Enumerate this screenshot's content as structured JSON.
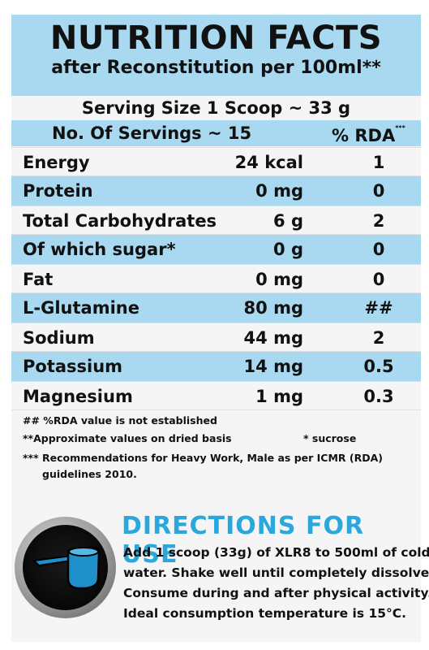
{
  "header": {
    "title": "NUTRITION FACTS",
    "subtitle": "after Reconstitution per 100ml**"
  },
  "serving_size": "Serving Size 1 Scoop ~ 33 g",
  "servings": {
    "count_label": "No. Of Servings ~ 15",
    "rda_label": "% RDA",
    "rda_marker": "***"
  },
  "nutrients": [
    {
      "name": "Energy",
      "value": "24 kcal",
      "rda": "1"
    },
    {
      "name": "Protein",
      "value": "0 mg",
      "rda": "0"
    },
    {
      "name": "Total Carbohydrates",
      "value": "6 g",
      "rda": "2"
    },
    {
      "name": "Of which sugar*",
      "value": "0 g",
      "rda": "0"
    },
    {
      "name": "Fat",
      "value": "0 mg",
      "rda": "0"
    },
    {
      "name": "L-Glutamine",
      "value": "80 mg",
      "rda": "##"
    },
    {
      "name": "Sodium",
      "value": "44 mg",
      "rda": "2"
    },
    {
      "name": "Potassium",
      "value": "14 mg",
      "rda": "0.5"
    },
    {
      "name": "Magnesium",
      "value": "1 mg",
      "rda": "0.3"
    }
  ],
  "notes": {
    "rda_not_established": "## %RDA value is not established",
    "approximate": "**Approximate values on dried basis",
    "sucrose": "* sucrose",
    "recommendation_line1": "*** Recommendations for Heavy Work, Male as per ICMR (RDA)",
    "recommendation_line2": "guidelines 2010."
  },
  "directions": {
    "title": "DIRECTIONS FOR USE",
    "lines": [
      "Add 1 scoop (33g) of XLR8 to 500ml of cold",
      "water. Shake well until completely dissolved.",
      "Consume during and after physical activity.",
      "Ideal consumption temperature is 15°C."
    ],
    "icon": "scoop-icon"
  },
  "colors": {
    "band_blue": "#a9d8f1",
    "accent_blue": "#2aa7dc",
    "scoop_blue": "#1f8fc9"
  }
}
